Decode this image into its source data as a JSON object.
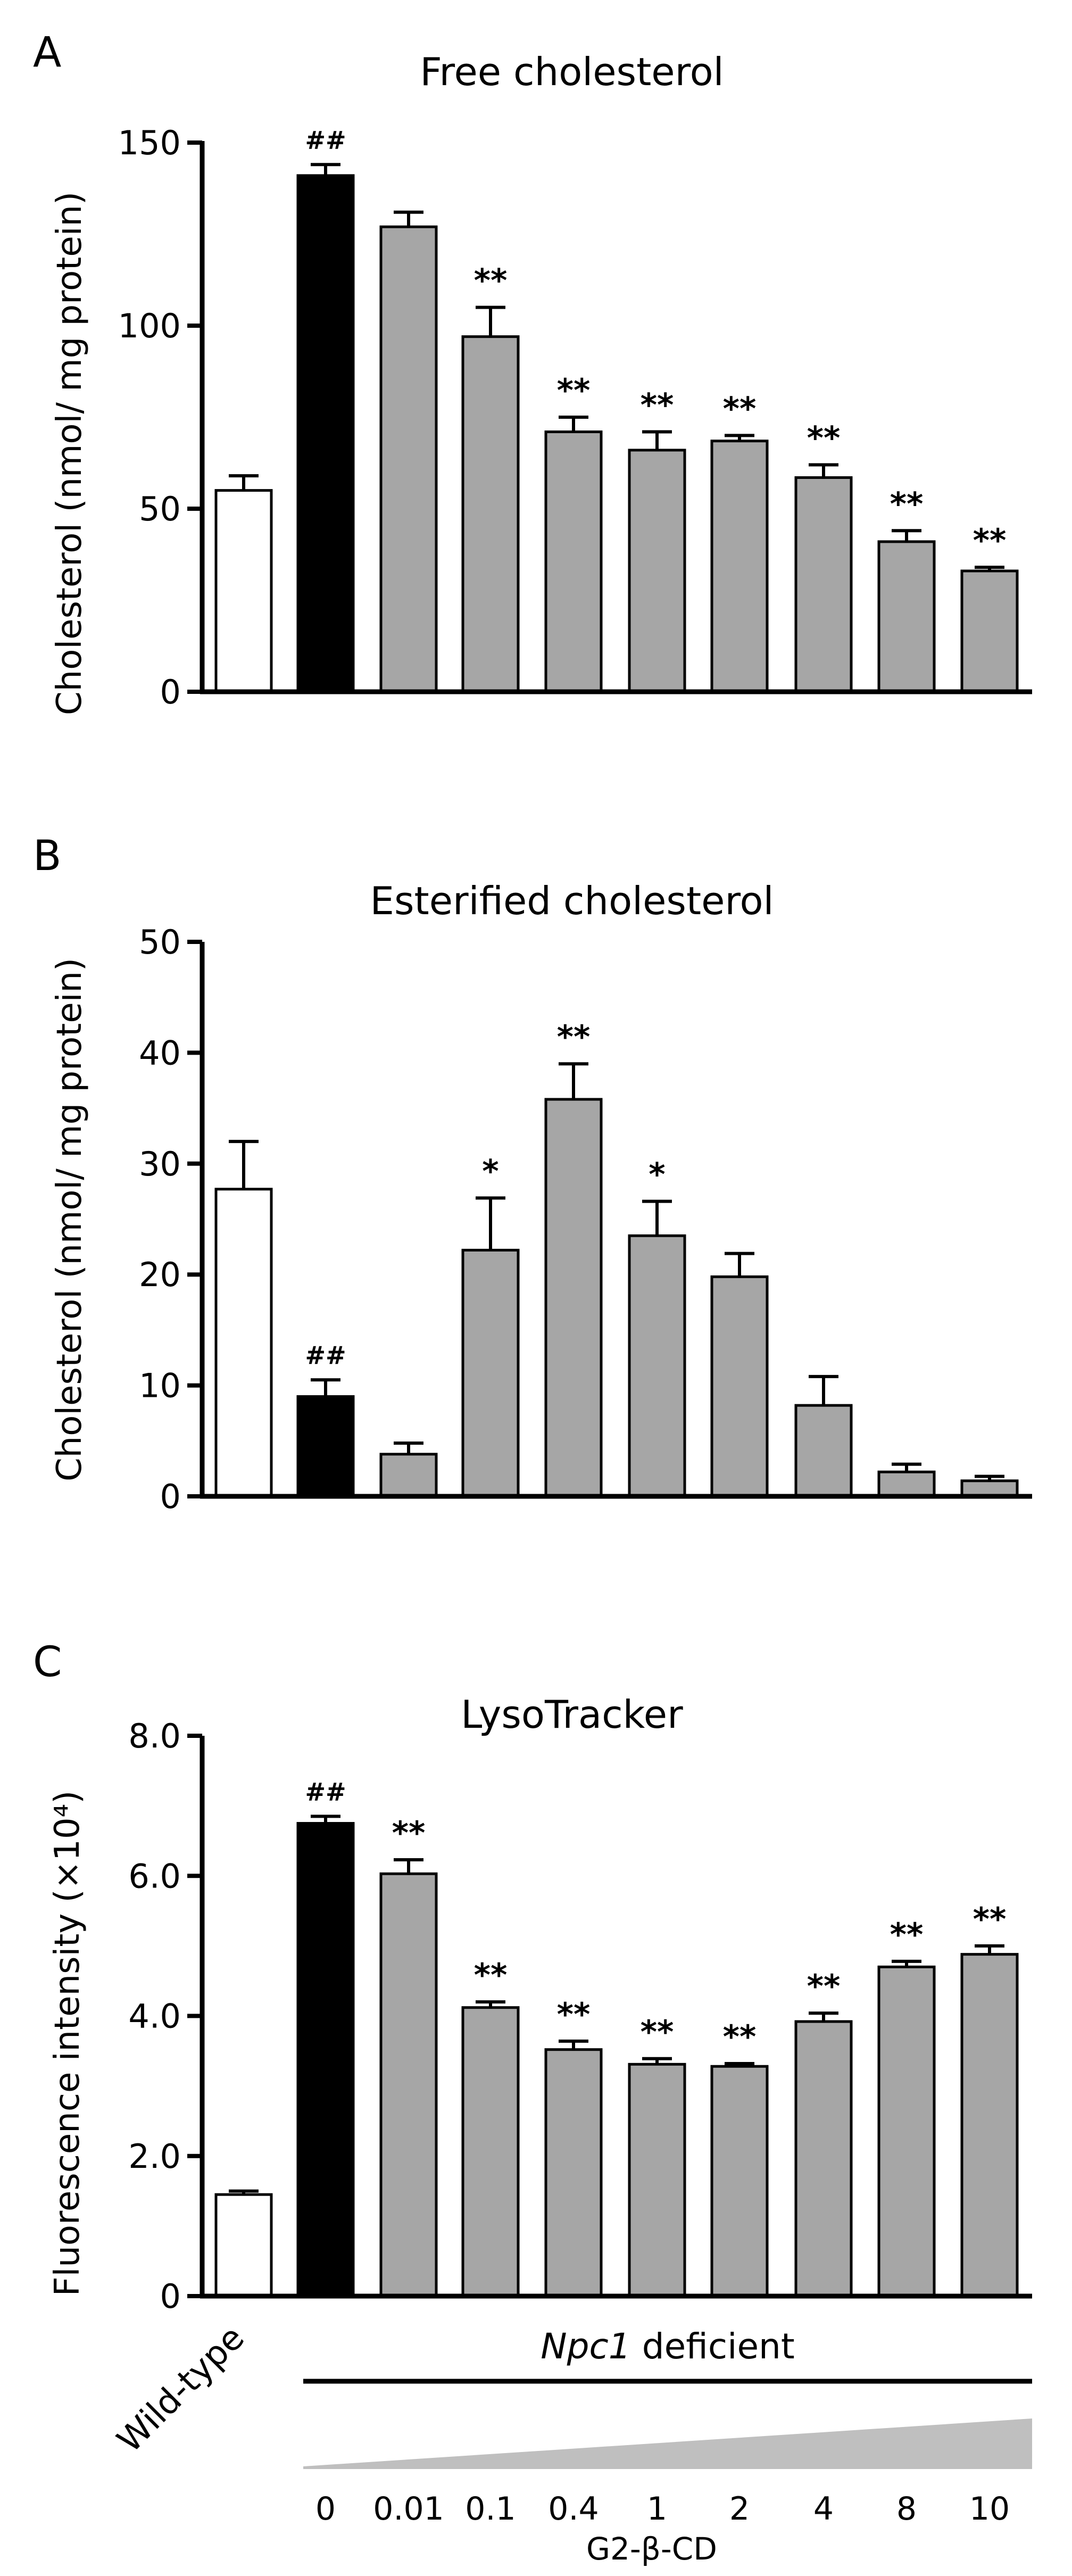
{
  "colors": {
    "wildtype": "#ffffff",
    "control": "#000000",
    "treated": "#a6a6a6",
    "wedge": "#bfbfbf"
  },
  "footer": {
    "wildtype_label": "Wild-type",
    "group_label_italic": "Npc1",
    "group_label_rest": " deficient",
    "dose_ticks": [
      "0",
      "0.01",
      "0.1",
      "0.4",
      "1",
      "2",
      "4",
      "8",
      "10"
    ],
    "dose_title": "G2-β-CD"
  },
  "chart_data": [
    {
      "type": "bar",
      "panel_label": "A",
      "title": "Free cholesterol",
      "ylabel": "Cholesterol (nmol/ mg protein)",
      "ylim": [
        0,
        150
      ],
      "yticks": [
        "0",
        "50",
        "100",
        "150"
      ],
      "categories": [
        "Wild-type",
        "0",
        "0.01",
        "0.1",
        "0.4",
        "1",
        "2",
        "4",
        "8",
        "10"
      ],
      "values": [
        55,
        141,
        127,
        97,
        71,
        66,
        68.5,
        58.5,
        41,
        33
      ],
      "errors": [
        4,
        3,
        4,
        8,
        4,
        5,
        1.5,
        3.5,
        3,
        1
      ],
      "annotations": [
        "",
        "##",
        "",
        "**",
        "**",
        "**",
        "**",
        "**",
        "**",
        "**"
      ]
    },
    {
      "type": "bar",
      "panel_label": "B",
      "title": "Esterified  cholesterol",
      "ylabel": "Cholesterol (nmol/ mg protein)",
      "ylim": [
        0,
        50
      ],
      "yticks": [
        "0",
        "10",
        "20",
        "30",
        "40",
        "50"
      ],
      "categories": [
        "Wild-type",
        "0",
        "0.01",
        "0.1",
        "0.4",
        "1",
        "2",
        "4",
        "8",
        "10"
      ],
      "values": [
        27.7,
        9,
        3.8,
        22.2,
        35.8,
        23.5,
        19.8,
        8.2,
        2.2,
        1.4
      ],
      "errors": [
        4.3,
        1.5,
        1.0,
        4.7,
        3.2,
        3.1,
        2.1,
        2.6,
        0.7,
        0.4
      ],
      "annotations": [
        "",
        "##",
        "",
        "*",
        "**",
        "*",
        "",
        "",
        "",
        ""
      ]
    },
    {
      "type": "bar",
      "panel_label": "C",
      "title": "LysoTracker",
      "ylabel": "Fluorescence intensity (×10⁴)",
      "ylim": [
        0,
        8
      ],
      "yticks": [
        "0",
        "2.0",
        "4.0",
        "6.0",
        "8.0"
      ],
      "categories": [
        "Wild-type",
        "0",
        "0.01",
        "0.1",
        "0.4",
        "1",
        "2",
        "4",
        "8",
        "10"
      ],
      "values": [
        1.45,
        6.75,
        6.03,
        4.12,
        3.52,
        3.31,
        3.28,
        3.92,
        4.7,
        4.88
      ],
      "errors": [
        0.05,
        0.1,
        0.2,
        0.08,
        0.12,
        0.08,
        0.04,
        0.12,
        0.08,
        0.12
      ],
      "annotations": [
        "",
        "##",
        "**",
        "**",
        "**",
        "**",
        "**",
        "**",
        "**",
        "**"
      ]
    }
  ]
}
